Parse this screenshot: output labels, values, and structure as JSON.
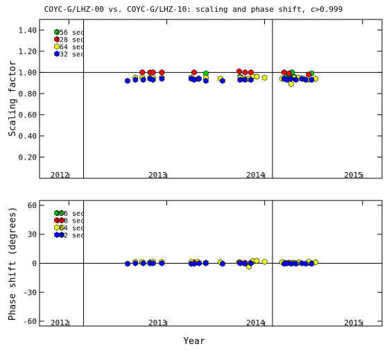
{
  "title": "COYC-G/LHZ-00 vs. COYC-G/LHZ-10: scaling and phase shift, c>0.999",
  "chart_data": [
    {
      "type": "scatter",
      "panel": "top",
      "ylabel": "Scaling factor",
      "xlabel": "",
      "xlim": [
        2011.7,
        2015.2
      ],
      "ylim": [
        0.0,
        1.5
      ],
      "x_ticks": [
        2012,
        2013,
        2014,
        2015
      ],
      "x_tick_labels": [
        "2012",
        "2013",
        "2014",
        "2015"
      ],
      "y_ticks": [
        0.2,
        0.4,
        0.6,
        0.8,
        1.0,
        1.2,
        1.4
      ],
      "y_tick_labels": [
        "0.20",
        "0.40",
        "0.60",
        "0.80",
        "1.00",
        "1.20",
        "1.40"
      ],
      "reference_y": 1.0,
      "vertical_lines_x": [
        2012.15,
        2014.08
      ],
      "legend_position": "top-left",
      "series": [
        {
          "name": "256 sec",
          "color": "#00cc00",
          "x": [
            2013.4,
            2013.75,
            2014.22,
            2014.25,
            2014.28,
            2014.3,
            2014.48
          ],
          "y": [
            0.99,
            0.96,
            0.97,
            0.98,
            1.0,
            0.96,
            0.99
          ]
        },
        {
          "name": "128 sec",
          "color": "#ff0000",
          "x": [
            2012.75,
            2012.83,
            2012.86,
            2012.95,
            2013.28,
            2013.74,
            2013.8,
            2013.86,
            2014.2,
            2014.25,
            2014.45
          ],
          "y": [
            1.0,
            1.0,
            1.0,
            1.0,
            1.0,
            1.01,
            1.0,
            1.0,
            1.0,
            0.99,
            0.98
          ]
        },
        {
          "name": "64 sec",
          "color": "#ffff00",
          "x": [
            2012.68,
            2012.75,
            2012.83,
            2012.86,
            2012.95,
            2013.25,
            2013.32,
            2013.4,
            2013.55,
            2013.75,
            2013.8,
            2013.84,
            2013.88,
            2013.92,
            2014.0,
            2014.18,
            2014.27,
            2014.3,
            2014.35,
            2014.4,
            2014.45,
            2014.52
          ],
          "y": [
            0.95,
            0.95,
            0.95,
            0.95,
            0.95,
            0.95,
            0.94,
            0.95,
            0.94,
            0.95,
            0.94,
            0.94,
            0.96,
            0.96,
            0.95,
            0.94,
            0.89,
            0.95,
            0.95,
            0.94,
            0.93,
            0.94
          ]
        },
        {
          "name": "32 sec",
          "color": "#0000ff",
          "x": [
            2012.6,
            2012.68,
            2012.76,
            2012.83,
            2012.86,
            2012.95,
            2013.25,
            2013.28,
            2013.33,
            2013.4,
            2013.57,
            2013.75,
            2013.8,
            2013.86,
            2014.2,
            2014.23,
            2014.27,
            2014.32,
            2014.38,
            2014.42,
            2014.48
          ],
          "y": [
            0.92,
            0.93,
            0.93,
            0.94,
            0.93,
            0.94,
            0.94,
            0.93,
            0.94,
            0.92,
            0.92,
            0.93,
            0.93,
            0.93,
            0.94,
            0.93,
            0.94,
            0.93,
            0.94,
            0.93,
            0.93
          ]
        }
      ]
    },
    {
      "type": "scatter",
      "panel": "bottom",
      "ylabel": "Phase shift (degrees)",
      "xlabel": "Year",
      "xlim": [
        2011.7,
        2015.2
      ],
      "ylim": [
        -65,
        65
      ],
      "x_ticks": [
        2012,
        2013,
        2014,
        2015
      ],
      "x_tick_labels": [
        "2012",
        "2013",
        "2014",
        "2015"
      ],
      "y_ticks": [
        -60,
        -30,
        0,
        30,
        60
      ],
      "y_tick_labels": [
        "-60",
        "-30",
        "0",
        "30",
        "60"
      ],
      "reference_y": 0,
      "vertical_lines_x": [
        2012.15,
        2014.08
      ],
      "legend_position": "top-left",
      "series": [
        {
          "name": "256 sec",
          "color": "#00cc00",
          "x": [
            2013.4,
            2013.75,
            2014.22,
            2014.25,
            2014.28,
            2014.3,
            2014.48
          ],
          "y": [
            0.5,
            0.5,
            0.0,
            0.5,
            0.0,
            0.5,
            0.0
          ]
        },
        {
          "name": "128 sec",
          "color": "#ff0000",
          "x": [
            2012.75,
            2012.83,
            2012.86,
            2012.95,
            2013.28,
            2013.74,
            2013.8,
            2013.86,
            2014.2,
            2014.25,
            2014.45
          ],
          "y": [
            1.0,
            1.0,
            1.0,
            1.0,
            1.0,
            1.0,
            0.5,
            0.5,
            0.5,
            0.5,
            0.5
          ]
        },
        {
          "name": "64 sec",
          "color": "#ffff00",
          "x": [
            2012.68,
            2012.75,
            2012.83,
            2012.86,
            2012.95,
            2013.25,
            2013.32,
            2013.55,
            2013.75,
            2013.84,
            2013.88,
            2013.92,
            2014.0,
            2014.18,
            2014.27,
            2014.35,
            2014.45,
            2014.52
          ],
          "y": [
            1.5,
            1.5,
            1.0,
            1.5,
            1.5,
            1.5,
            1.5,
            1.0,
            1.0,
            -3.5,
            2.5,
            2.5,
            1.5,
            1.0,
            0.5,
            1.0,
            1.5,
            1.0
          ]
        },
        {
          "name": "32 sec",
          "color": "#0000ff",
          "x": [
            2012.6,
            2012.68,
            2012.76,
            2012.83,
            2012.86,
            2012.95,
            2013.25,
            2013.28,
            2013.33,
            2013.4,
            2013.57,
            2013.75,
            2013.8,
            2013.86,
            2014.2,
            2014.23,
            2014.27,
            2014.32,
            2014.38,
            2014.42,
            2014.48
          ],
          "y": [
            -0.5,
            0.0,
            0.0,
            0.0,
            0.0,
            0.0,
            -0.5,
            -0.5,
            0.0,
            0.0,
            -0.5,
            0.0,
            -0.5,
            0.0,
            -0.5,
            0.0,
            -0.5,
            -0.5,
            0.0,
            -0.5,
            -0.5
          ]
        }
      ]
    }
  ]
}
